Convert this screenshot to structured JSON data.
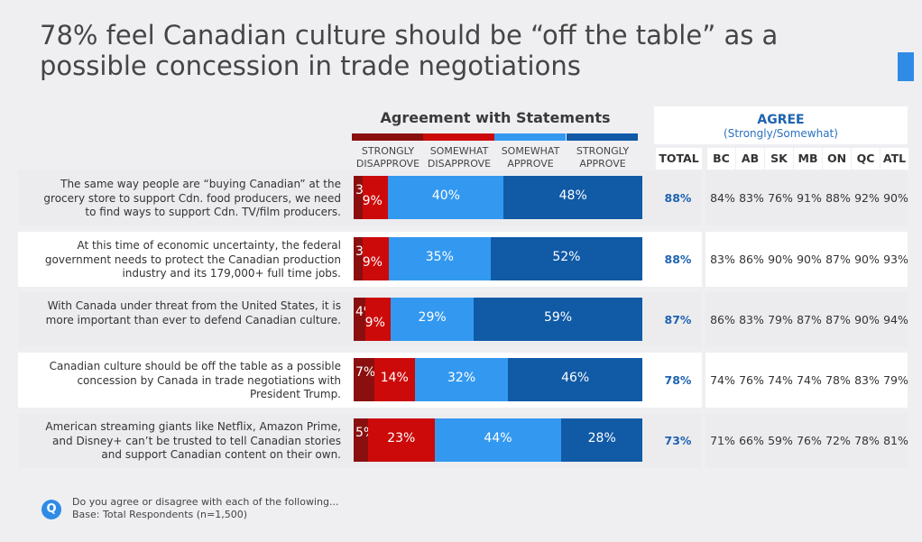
{
  "title": "78% feel Canadian culture should be “off the table” as a possible concession in trade negotiations",
  "footer": {
    "icon_letter": "Q",
    "question": "Do you agree or disagree with each of the following...",
    "base": "Base: Total Respondents (n=1,500)"
  },
  "table": {
    "header_title": "AGREE",
    "header_sub": "(Strongly/Somewhat)",
    "columns": [
      "TOTAL",
      "BC",
      "AB",
      "SK",
      "MB",
      "ON",
      "QC",
      "ATL"
    ],
    "rows": [
      [
        "88%",
        "84%",
        "83%",
        "76%",
        "91%",
        "88%",
        "92%",
        "90%"
      ],
      [
        "88%",
        "83%",
        "86%",
        "90%",
        "90%",
        "87%",
        "90%",
        "93%"
      ],
      [
        "87%",
        "86%",
        "83%",
        "79%",
        "87%",
        "87%",
        "90%",
        "94%"
      ],
      [
        "78%",
        "74%",
        "76%",
        "74%",
        "74%",
        "78%",
        "83%",
        "79%"
      ],
      [
        "73%",
        "71%",
        "66%",
        "59%",
        "76%",
        "72%",
        "78%",
        "81%"
      ]
    ]
  },
  "chart_data": {
    "type": "bar",
    "orientation": "horizontal-stacked",
    "title": "Agreement with Statements",
    "legend": [
      "STRONGLY DISAPPROVE",
      "SOMEWHAT DISAPPROVE",
      "SOMEWHAT APPROVE",
      "STRONGLY APPROVE"
    ],
    "legend_placement": "top",
    "colors": [
      "#8a0f0f",
      "#cc0a0a",
      "#3399f0",
      "#105aa6"
    ],
    "categories": [
      "The same way people are “buying Canadian” at the grocery store to support Cdn. food producers, we need to find ways to support Cdn. TV/film producers.",
      "At this time of economic uncertainty, the federal government needs to protect the Canadian production industry and its 179,000+ full time jobs.",
      "With Canada under threat from the United States, it is more important than ever to defend Canadian culture.",
      "Canadian culture should be off the table as a possible concession by Canada in trade negotiations with President Trump.",
      "American streaming giants like Netflix, Amazon Prime, and Disney+ can’t be trusted to tell Canadian stories and support Canadian content on their own."
    ],
    "series": [
      {
        "name": "STRONGLY DISAPPROVE",
        "values": [
          3,
          3,
          4,
          7,
          5
        ],
        "labels": [
          "3%",
          "3%",
          "4%",
          "7%",
          "5%"
        ]
      },
      {
        "name": "SOMEWHAT DISAPPROVE",
        "values": [
          9,
          9,
          9,
          14,
          23
        ],
        "labels": [
          "9%",
          "9%",
          "9%",
          "14%",
          "23%"
        ]
      },
      {
        "name": "SOMEWHAT APPROVE",
        "values": [
          40,
          35,
          29,
          32,
          44
        ],
        "labels": [
          "40%",
          "35%",
          "29%",
          "32%",
          "44%"
        ]
      },
      {
        "name": "STRONGLY APPROVE",
        "values": [
          48,
          52,
          59,
          46,
          28
        ],
        "labels": [
          "48%",
          "52%",
          "59%",
          "46%",
          "28%"
        ]
      }
    ],
    "unit": "%"
  }
}
